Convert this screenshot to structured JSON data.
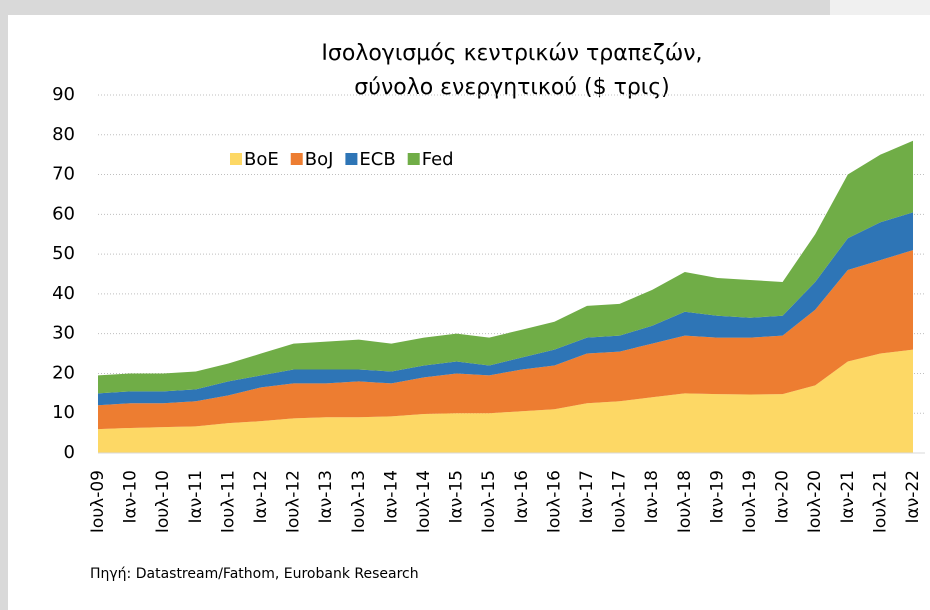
{
  "chart_data": {
    "type": "stacked_area",
    "title": [
      "Ισολογισμός κεντρικών τραπεζών,",
      "σύνολο ενεργητικού ($ τρις)"
    ],
    "source": "Πηγή: Datastream/Fathom, Eurobank Research",
    "categories": [
      "Ιουλ-09",
      "Ιαν-10",
      "Ιουλ-10",
      "Ιαν-11",
      "Ιουλ-11",
      "Ιαν-12",
      "Ιουλ-12",
      "Ιαν-13",
      "Ιουλ-13",
      "Ιαν-14",
      "Ιουλ-14",
      "Ιαν-15",
      "Ιουλ-15",
      "Ιαν-16",
      "Ιουλ-16",
      "Ιαν-17",
      "Ιουλ-17",
      "Ιαν-18",
      "Ιουλ-18",
      "Ιαν-19",
      "Ιουλ-19",
      "Ιαν-20",
      "Ιουλ-20",
      "Ιαν-21",
      "Ιουλ-21",
      "Ιαν-22"
    ],
    "series": [
      {
        "name": "BoE",
        "color": "#fdd865",
        "values": [
          6,
          6.3,
          6.5,
          6.7,
          7.5,
          8,
          8.7,
          9,
          9,
          9.2,
          9.8,
          10,
          10,
          10.5,
          11,
          12.5,
          13,
          14,
          15,
          14.8,
          14.7,
          14.8,
          17,
          23,
          25,
          26
        ]
      },
      {
        "name": "BoJ",
        "color": "#ed7d31",
        "values": [
          6,
          6.2,
          6,
          6.3,
          7,
          8.5,
          8.8,
          8.5,
          9,
          8.3,
          9.2,
          10,
          9.5,
          10.5,
          11,
          12.5,
          12.5,
          13.5,
          14.5,
          14.2,
          14.3,
          14.7,
          19,
          23,
          23.5,
          25
        ]
      },
      {
        "name": "ECB",
        "color": "#2e75b6",
        "values": [
          3,
          3,
          3,
          3,
          3.5,
          3,
          3.5,
          3.5,
          3,
          3,
          3,
          3,
          2.5,
          3,
          4,
          4,
          4,
          4.5,
          6,
          5.5,
          5,
          5,
          7,
          8,
          9.5,
          9.5
        ]
      },
      {
        "name": "Fed",
        "color": "#70ad47",
        "values": [
          4.5,
          4.5,
          4.5,
          4.5,
          4.5,
          5.5,
          6.5,
          7,
          7.5,
          7,
          7,
          7,
          7,
          7,
          7,
          8,
          8,
          9,
          10,
          9.5,
          9.5,
          8.5,
          12,
          16,
          17,
          18
        ]
      }
    ],
    "ylim": [
      0,
      90
    ],
    "yticks": [
      0,
      10,
      20,
      30,
      40,
      50,
      60,
      70,
      80,
      90
    ],
    "grid": true
  }
}
